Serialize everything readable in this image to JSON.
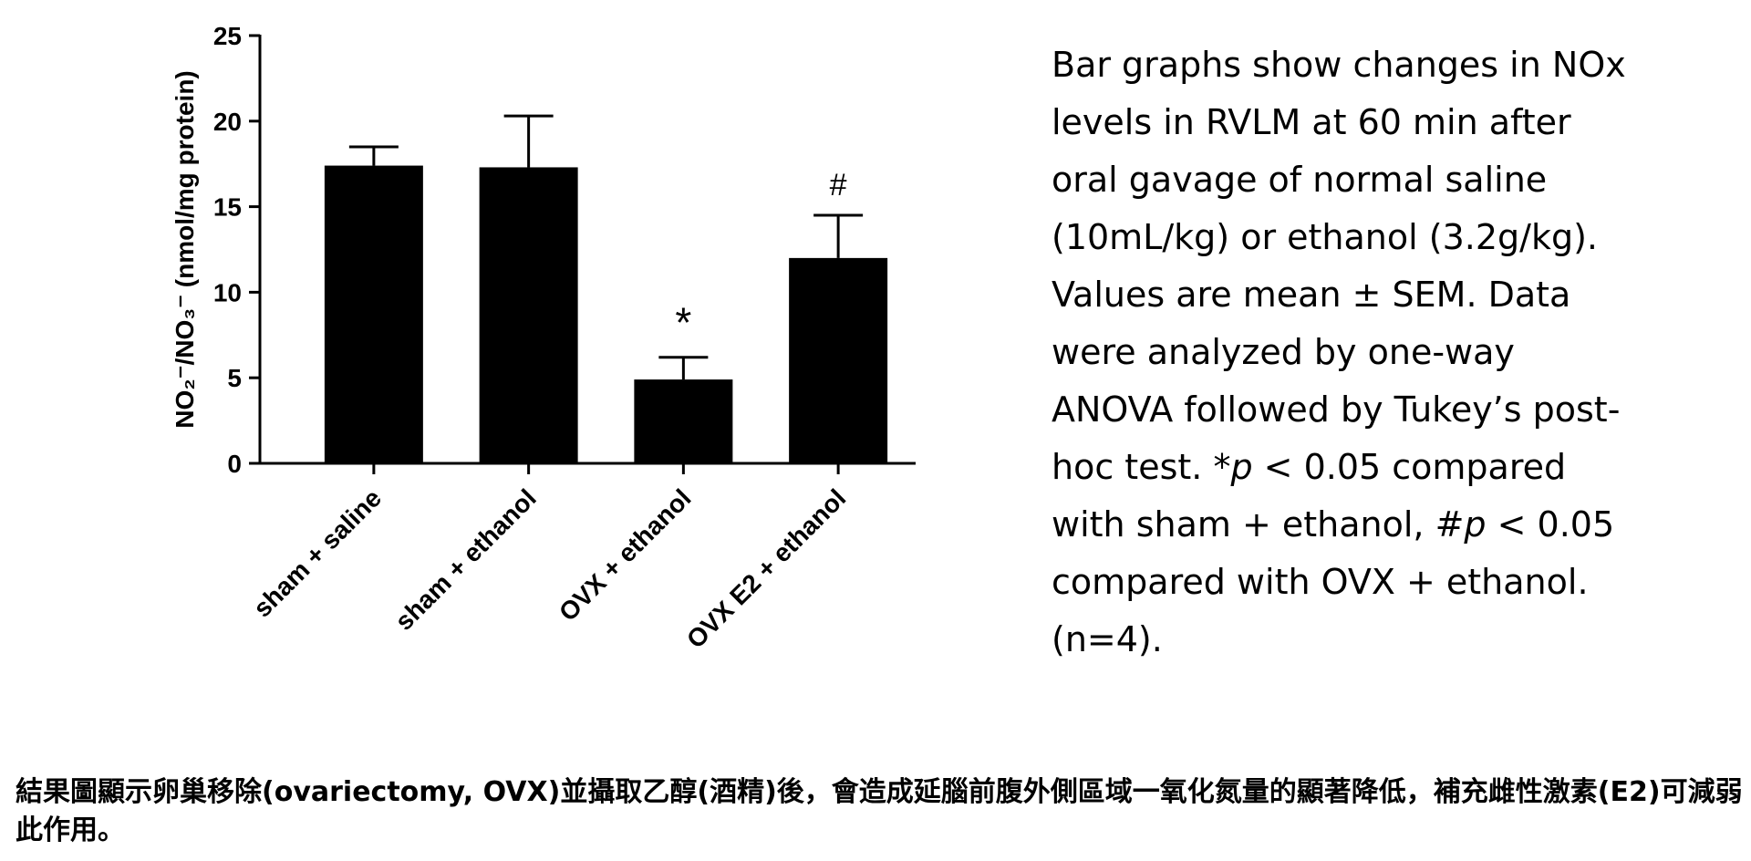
{
  "chart_data": {
    "type": "bar",
    "y_label": "NO₂⁻/NO₃⁻ (nmol/mg protein)",
    "categories": [
      "sham + saline",
      "sham + ethanol",
      "OVX + ethanol",
      "OVX E2 + ethanol"
    ],
    "values": [
      17.4,
      17.3,
      4.9,
      12.0
    ],
    "errors": [
      1.1,
      3.0,
      1.3,
      2.5
    ],
    "markers": [
      null,
      null,
      "*",
      "#"
    ],
    "color": "#000000",
    "ylim": [
      0,
      25
    ],
    "yticks": [
      0,
      5,
      10,
      15,
      20,
      25
    ],
    "grid": false
  },
  "caption": [
    "Bar graphs show changes in NOx levels in RVLM at 60 min after oral gavage of normal saline (10mL/kg) or ethanol (3.2g/kg). Values are mean ± SEM. Data were analyzed by one-way ANOVA followed by Tukey’s post-hoc test. *",
    "p",
    " < 0.05 compared with sham + ethanol, #",
    "p",
    " < 0.05 compared with OVX + ethanol. (n=4)."
  ],
  "note": "結果圖顯示卵巢移除(ovariectomy, OVX)並攝取乙醇(酒精)後，會造成延腦前腹外側區域一氧化氮量的顯著降低，補充雌性激素(E2)可減弱此作用。"
}
